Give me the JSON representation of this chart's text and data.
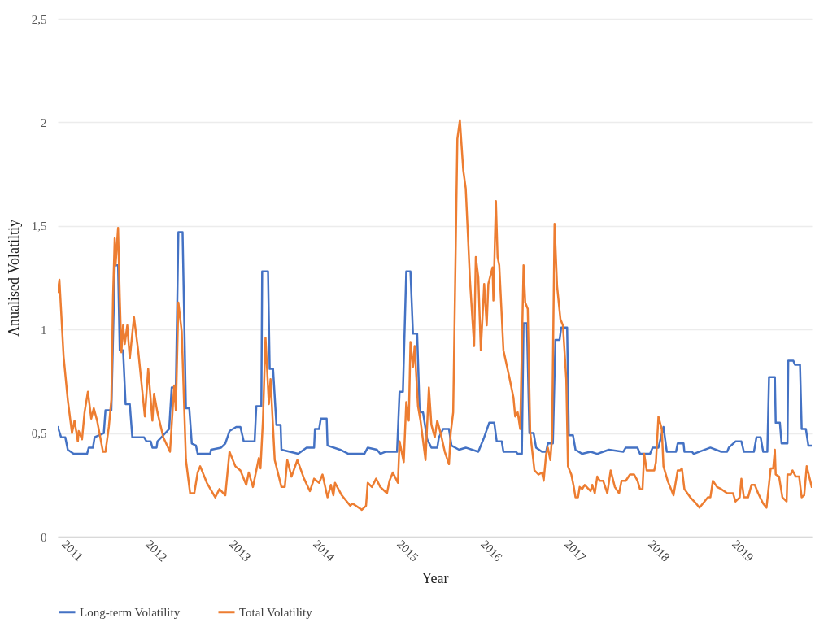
{
  "chart_data": {
    "type": "line",
    "xlabel": "Year",
    "ylabel": "Anualised Volatiltiy",
    "xlim": [
      2010.93,
      2019.93
    ],
    "xticks": [
      2011,
      2012,
      2013,
      2014,
      2015,
      2016,
      2017,
      2018,
      2019
    ],
    "ylim": [
      0,
      2.5
    ],
    "yticks": [
      0,
      {
        "value": 0.5,
        "label": "0,5"
      },
      1,
      {
        "value": 1.5,
        "label": "1,5"
      },
      2,
      {
        "value": 2.5,
        "label": "2,5"
      }
    ],
    "grid": "y",
    "legend": "bottom",
    "series": [
      {
        "name": "Long-term Volatility",
        "color": "#4472c4",
        "x": [
          2010.93,
          2010.97,
          2011.02,
          2011.05,
          2011.12,
          2011.28,
          2011.3,
          2011.35,
          2011.37,
          2011.48,
          2011.5,
          2011.57,
          2011.61,
          2011.65,
          2011.67,
          2011.71,
          2011.74,
          2011.79,
          2011.82,
          2011.96,
          2011.99,
          2012.04,
          2012.06,
          2012.11,
          2012.12,
          2012.26,
          2012.29,
          2012.34,
          2012.37,
          2012.42,
          2012.46,
          2012.5,
          2012.53,
          2012.58,
          2012.6,
          2012.75,
          2012.76,
          2012.88,
          2012.93,
          2012.98,
          2013.06,
          2013.11,
          2013.15,
          2013.28,
          2013.3,
          2013.36,
          2013.37,
          2013.44,
          2013.46,
          2013.5,
          2013.54,
          2013.59,
          2013.6,
          2013.7,
          2013.8,
          2013.9,
          2013.99,
          2014.0,
          2014.05,
          2014.07,
          2014.14,
          2014.15,
          2014.3,
          2014.4,
          2014.59,
          2014.63,
          2014.74,
          2014.78,
          2014.84,
          2014.98,
          2015.01,
          2015.05,
          2015.09,
          2015.14,
          2015.17,
          2015.22,
          2015.25,
          2015.29,
          2015.34,
          2015.39,
          2015.46,
          2015.48,
          2015.53,
          2015.6,
          2015.63,
          2015.72,
          2015.8,
          2015.95,
          2016.02,
          2016.08,
          2016.14,
          2016.17,
          2016.23,
          2016.25,
          2016.4,
          2016.42,
          2016.47,
          2016.49,
          2016.53,
          2016.56,
          2016.61,
          2016.64,
          2016.71,
          2016.76,
          2016.78,
          2016.84,
          2016.87,
          2016.92,
          2016.94,
          2017.01,
          2017.03,
          2017.08,
          2017.11,
          2017.19,
          2017.29,
          2017.37,
          2017.44,
          2017.51,
          2017.68,
          2017.71,
          2017.85,
          2017.88,
          2018.0,
          2018.03,
          2018.1,
          2018.16,
          2018.2,
          2018.31,
          2018.33,
          2018.4,
          2018.41,
          2018.5,
          2018.52,
          2018.72,
          2018.85,
          2018.92,
          2018.94,
          2019.02,
          2019.09,
          2019.12,
          2019.24,
          2019.27,
          2019.32,
          2019.35,
          2019.4,
          2019.42,
          2019.49,
          2019.5,
          2019.55,
          2019.57,
          2019.64,
          2019.65,
          2019.71,
          2019.73,
          2019.79,
          2019.81,
          2019.86,
          2019.89,
          2019.93
        ],
        "values": [
          0.53,
          0.48,
          0.48,
          0.42,
          0.4,
          0.4,
          0.43,
          0.43,
          0.48,
          0.5,
          0.61,
          0.61,
          1.31,
          1.31,
          0.9,
          0.9,
          0.64,
          0.64,
          0.48,
          0.48,
          0.46,
          0.46,
          0.43,
          0.43,
          0.46,
          0.52,
          0.72,
          0.72,
          1.47,
          1.47,
          0.62,
          0.62,
          0.45,
          0.44,
          0.4,
          0.4,
          0.42,
          0.43,
          0.45,
          0.51,
          0.53,
          0.53,
          0.46,
          0.46,
          0.63,
          0.63,
          1.28,
          1.28,
          0.81,
          0.81,
          0.54,
          0.54,
          0.42,
          0.41,
          0.4,
          0.43,
          0.43,
          0.52,
          0.52,
          0.57,
          0.57,
          0.44,
          0.42,
          0.4,
          0.4,
          0.43,
          0.42,
          0.4,
          0.41,
          0.41,
          0.7,
          0.7,
          1.28,
          1.28,
          0.98,
          0.98,
          0.6,
          0.6,
          0.47,
          0.43,
          0.43,
          0.48,
          0.52,
          0.52,
          0.44,
          0.42,
          0.43,
          0.41,
          0.48,
          0.55,
          0.55,
          0.46,
          0.46,
          0.41,
          0.41,
          0.4,
          0.4,
          1.03,
          1.03,
          0.5,
          0.5,
          0.43,
          0.41,
          0.41,
          0.45,
          0.45,
          0.95,
          0.95,
          1.01,
          1.01,
          0.49,
          0.49,
          0.42,
          0.4,
          0.41,
          0.4,
          0.41,
          0.42,
          0.41,
          0.43,
          0.43,
          0.4,
          0.4,
          0.43,
          0.43,
          0.53,
          0.41,
          0.41,
          0.45,
          0.45,
          0.41,
          0.41,
          0.4,
          0.43,
          0.41,
          0.41,
          0.43,
          0.46,
          0.46,
          0.41,
          0.41,
          0.48,
          0.48,
          0.41,
          0.41,
          0.77,
          0.77,
          0.55,
          0.55,
          0.45,
          0.45,
          0.85,
          0.85,
          0.83,
          0.83,
          0.52,
          0.52,
          0.44,
          0.44
        ]
      },
      {
        "name": "Total Volatility",
        "color": "#ed7d31",
        "x": [
          2010.93,
          2010.95,
          2011.0,
          2011.05,
          2011.1,
          2011.13,
          2011.17,
          2011.18,
          2011.22,
          2011.25,
          2011.29,
          2011.33,
          2011.36,
          2011.4,
          2011.47,
          2011.5,
          2011.54,
          2011.57,
          2011.59,
          2011.61,
          2011.62,
          2011.65,
          2011.67,
          2011.69,
          2011.71,
          2011.73,
          2011.76,
          2011.79,
          2011.84,
          2011.89,
          2011.97,
          2012.01,
          2012.06,
          2012.08,
          2012.12,
          2012.19,
          2012.27,
          2012.32,
          2012.34,
          2012.37,
          2012.41,
          2012.46,
          2012.51,
          2012.56,
          2012.6,
          2012.63,
          2012.71,
          2012.81,
          2012.86,
          2012.93,
          2012.98,
          2013.05,
          2013.11,
          2013.18,
          2013.21,
          2013.26,
          2013.33,
          2013.35,
          2013.38,
          2013.41,
          2013.45,
          2013.47,
          2013.52,
          2013.6,
          2013.64,
          2013.67,
          2013.72,
          2013.79,
          2013.87,
          2013.94,
          2013.99,
          2014.05,
          2014.09,
          2014.15,
          2014.19,
          2014.22,
          2014.24,
          2014.32,
          2014.42,
          2014.45,
          2014.56,
          2014.61,
          2014.63,
          2014.68,
          2014.73,
          2014.78,
          2014.86,
          2014.89,
          2014.93,
          2014.99,
          2015.01,
          2015.06,
          2015.09,
          2015.12,
          2015.14,
          2015.17,
          2015.19,
          2015.23,
          2015.26,
          2015.32,
          2015.36,
          2015.39,
          2015.43,
          2015.46,
          2015.5,
          2015.55,
          2015.6,
          2015.62,
          2015.65,
          2015.7,
          2015.73,
          2015.77,
          2015.8,
          2015.83,
          2015.85,
          2015.9,
          2015.92,
          2015.95,
          2015.98,
          2016.02,
          2016.05,
          2016.07,
          2016.12,
          2016.13,
          2016.16,
          2016.18,
          2016.2,
          2016.25,
          2016.32,
          2016.37,
          2016.39,
          2016.42,
          2016.45,
          2016.49,
          2016.51,
          2016.54,
          2016.57,
          2016.62,
          2016.67,
          2016.71,
          2016.73,
          2016.76,
          2016.78,
          2016.81,
          2016.83,
          2016.86,
          2016.89,
          2016.93,
          2016.96,
          2017.0,
          2017.02,
          2017.06,
          2017.09,
          2017.11,
          2017.14,
          2017.16,
          2017.19,
          2017.22,
          2017.29,
          2017.31,
          2017.34,
          2017.37,
          2017.4,
          2017.44,
          2017.49,
          2017.53,
          2017.58,
          2017.63,
          2017.66,
          2017.71,
          2017.76,
          2017.81,
          2017.85,
          2017.88,
          2017.91,
          2017.93,
          2017.96,
          2018.0,
          2018.05,
          2018.07,
          2018.1,
          2018.14,
          2018.16,
          2018.21,
          2018.28,
          2018.33,
          2018.36,
          2018.38,
          2018.41,
          2018.48,
          2018.55,
          2018.59,
          2018.65,
          2018.69,
          2018.72,
          2018.75,
          2018.8,
          2018.85,
          2018.92,
          2018.99,
          2019.02,
          2019.07,
          2019.09,
          2019.12,
          2019.17,
          2019.21,
          2019.25,
          2019.29,
          2019.35,
          2019.39,
          2019.44,
          2019.47,
          2019.49,
          2019.5,
          2019.54,
          2019.58,
          2019.63,
          2019.64,
          2019.68,
          2019.7,
          2019.74,
          2019.78,
          2019.81,
          2019.84,
          2019.87,
          2019.93
        ],
        "values": [
          1.18,
          1.24,
          0.87,
          0.66,
          0.5,
          0.56,
          0.46,
          0.51,
          0.47,
          0.6,
          0.7,
          0.57,
          0.62,
          0.56,
          0.41,
          0.41,
          0.53,
          0.66,
          1.16,
          1.44,
          1.31,
          1.49,
          1.16,
          0.89,
          1.02,
          0.93,
          1.02,
          0.86,
          1.06,
          0.9,
          0.58,
          0.81,
          0.56,
          0.69,
          0.6,
          0.48,
          0.41,
          0.73,
          0.61,
          1.13,
          0.99,
          0.37,
          0.21,
          0.21,
          0.31,
          0.34,
          0.26,
          0.19,
          0.23,
          0.2,
          0.41,
          0.34,
          0.32,
          0.25,
          0.31,
          0.24,
          0.38,
          0.33,
          0.57,
          0.96,
          0.64,
          0.76,
          0.37,
          0.24,
          0.24,
          0.37,
          0.29,
          0.37,
          0.28,
          0.22,
          0.28,
          0.26,
          0.3,
          0.19,
          0.25,
          0.2,
          0.26,
          0.2,
          0.15,
          0.16,
          0.13,
          0.15,
          0.26,
          0.24,
          0.28,
          0.24,
          0.21,
          0.27,
          0.31,
          0.26,
          0.46,
          0.36,
          0.65,
          0.56,
          0.94,
          0.82,
          0.92,
          0.63,
          0.56,
          0.37,
          0.72,
          0.54,
          0.48,
          0.56,
          0.5,
          0.41,
          0.35,
          0.5,
          0.6,
          1.92,
          2.01,
          1.77,
          1.68,
          1.42,
          1.24,
          0.92,
          1.35,
          1.25,
          0.9,
          1.22,
          1.02,
          1.22,
          1.3,
          1.14,
          1.62,
          1.35,
          1.31,
          0.9,
          0.77,
          0.67,
          0.58,
          0.6,
          0.52,
          1.31,
          1.13,
          1.1,
          0.5,
          0.32,
          0.3,
          0.31,
          0.27,
          0.4,
          0.43,
          0.37,
          0.48,
          1.51,
          1.21,
          1.05,
          1.02,
          0.76,
          0.34,
          0.3,
          0.24,
          0.19,
          0.19,
          0.24,
          0.23,
          0.25,
          0.22,
          0.25,
          0.21,
          0.29,
          0.27,
          0.27,
          0.21,
          0.32,
          0.24,
          0.21,
          0.27,
          0.27,
          0.3,
          0.3,
          0.27,
          0.23,
          0.23,
          0.4,
          0.32,
          0.32,
          0.32,
          0.36,
          0.58,
          0.52,
          0.34,
          0.27,
          0.2,
          0.32,
          0.32,
          0.33,
          0.23,
          0.19,
          0.16,
          0.14,
          0.17,
          0.19,
          0.19,
          0.27,
          0.24,
          0.23,
          0.21,
          0.21,
          0.17,
          0.19,
          0.28,
          0.19,
          0.19,
          0.25,
          0.25,
          0.21,
          0.16,
          0.14,
          0.33,
          0.33,
          0.42,
          0.3,
          0.29,
          0.19,
          0.17,
          0.3,
          0.3,
          0.32,
          0.29,
          0.29,
          0.19,
          0.2,
          0.34,
          0.24
        ]
      }
    ]
  }
}
